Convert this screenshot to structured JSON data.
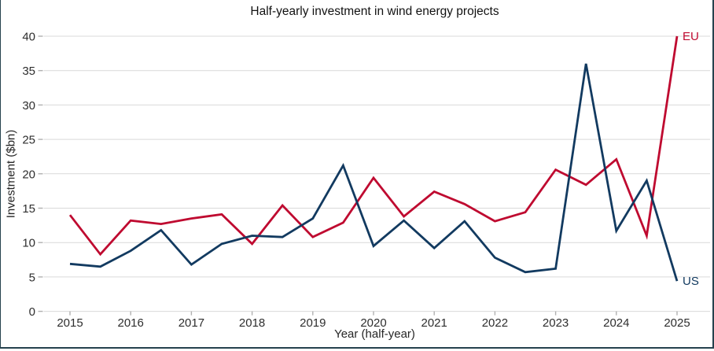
{
  "title": "Half-yearly investment in wind energy projects",
  "chart_data": {
    "type": "line",
    "title": "Half-yearly investment in wind energy projects",
    "xlabel": "Year (half-year)",
    "ylabel": "Investment ($bn)",
    "x": [
      2015,
      2015.5,
      2016,
      2016.5,
      2017,
      2017.5,
      2018,
      2018.5,
      2019,
      2019.5,
      2020,
      2020.5,
      2021,
      2021.5,
      2022,
      2022.5,
      2023,
      2023.5,
      2024,
      2024.5,
      2025
    ],
    "series": [
      {
        "name": "EU",
        "color": "#bf0a30",
        "values": [
          14,
          8.3,
          13.2,
          12.7,
          13.5,
          14.1,
          9.8,
          15.4,
          10.8,
          12.9,
          19.4,
          13.8,
          17.4,
          15.6,
          13.1,
          14.4,
          20.6,
          18.4,
          22.1,
          11,
          40
        ]
      },
      {
        "name": "US",
        "color": "#123a60",
        "values": [
          6.9,
          6.5,
          8.8,
          11.8,
          6.8,
          9.8,
          11,
          10.8,
          13.5,
          21.2,
          9.5,
          13.2,
          9.2,
          13.1,
          7.8,
          5.7,
          6.2,
          36,
          11.7,
          19,
          4.4
        ]
      }
    ],
    "ylim": [
      0,
      40
    ],
    "y_ticks": [
      0,
      5,
      10,
      15,
      20,
      25,
      30,
      35,
      40
    ],
    "x_ticks": [
      2015,
      2016,
      2017,
      2018,
      2019,
      2020,
      2021,
      2022,
      2023,
      2024,
      2025
    ],
    "grid": "horizontal",
    "legend": "series-name-labels-at-line-ends"
  },
  "colors": {
    "grid": "#d9d9d9",
    "tick": "#b0b0b0",
    "tick_text": "#2e2e2e",
    "border": "#26424e",
    "background": "#ffffff"
  }
}
